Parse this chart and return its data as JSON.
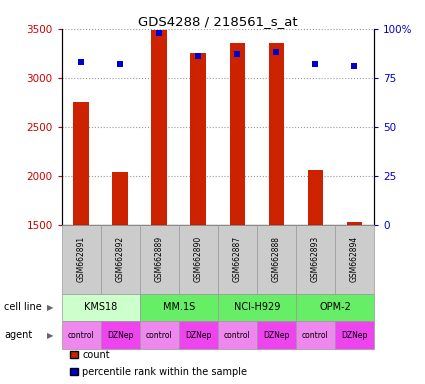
{
  "title": "GDS4288 / 218561_s_at",
  "samples": [
    "GSM662891",
    "GSM662892",
    "GSM662889",
    "GSM662890",
    "GSM662887",
    "GSM662888",
    "GSM662893",
    "GSM662894"
  ],
  "counts": [
    2750,
    2040,
    3490,
    3250,
    3360,
    3360,
    2060,
    1530
  ],
  "percentile_ranks": [
    83,
    82,
    98,
    86,
    87,
    88,
    82,
    81
  ],
  "cell_lines": [
    {
      "label": "KMS18",
      "start": 0,
      "end": 2,
      "color": "#ccffcc"
    },
    {
      "label": "MM.1S",
      "start": 2,
      "end": 4,
      "color": "#66ee66"
    },
    {
      "label": "NCI-H929",
      "start": 4,
      "end": 6,
      "color": "#66ee66"
    },
    {
      "label": "OPM-2",
      "start": 6,
      "end": 8,
      "color": "#66ee66"
    }
  ],
  "agents": [
    "control",
    "DZNep",
    "control",
    "DZNep",
    "control",
    "DZNep",
    "control",
    "DZNep"
  ],
  "agent_colors": [
    "#ee88ee",
    "#ee44ee",
    "#ee88ee",
    "#ee44ee",
    "#ee88ee",
    "#ee44ee",
    "#ee88ee",
    "#ee44ee"
  ],
  "bar_color": "#cc2200",
  "dot_color": "#0000cc",
  "ylim_left": [
    1500,
    3500
  ],
  "ylim_right": [
    0,
    100
  ],
  "yticks_left": [
    1500,
    2000,
    2500,
    3000,
    3500
  ],
  "yticks_right": [
    0,
    25,
    50,
    75,
    100
  ],
  "ytick_labels_right": [
    "0",
    "25",
    "50",
    "75",
    "100%"
  ],
  "grid_color": "#999999",
  "bar_width": 0.4,
  "left_tick_color": "#cc0000",
  "right_tick_color": "#0000cc",
  "cell_line_row_label": "cell line",
  "agent_row_label": "agent",
  "legend_count_label": "count",
  "legend_pct_label": "percentile rank within the sample",
  "sample_bg_color": "#cccccc",
  "sample_edge_color": "#999999"
}
